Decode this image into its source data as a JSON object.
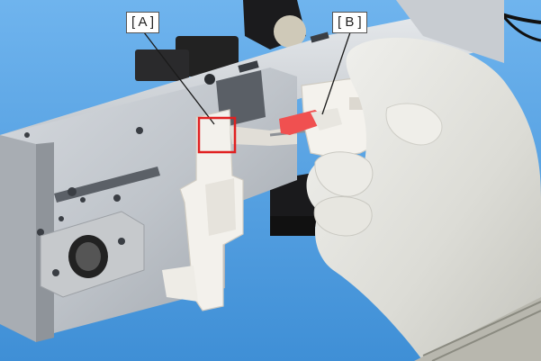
{
  "callouts": {
    "a": {
      "label": "[ A ]"
    },
    "b": {
      "label": "[ B ]"
    }
  },
  "colors": {
    "background": "#5ba8e6",
    "highlight_box": "#e02020",
    "marked_part": "#f05050"
  }
}
